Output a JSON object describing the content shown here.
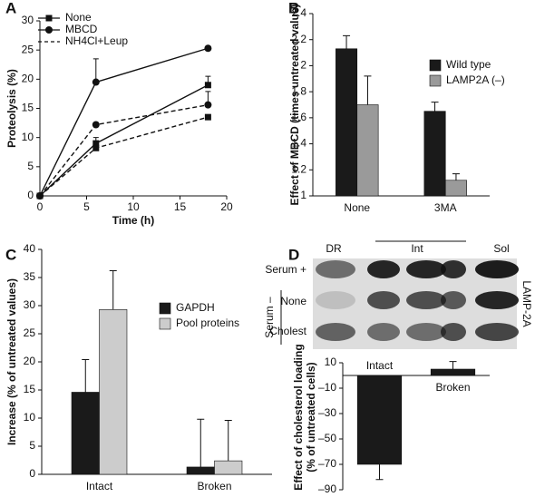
{
  "chart_data": [
    {
      "type": "line",
      "panel": "A",
      "ylabel": "Proteolysis (%)",
      "xlabel": "Time (h)",
      "x": [
        0,
        6,
        18
      ],
      "xlim": [
        0,
        20
      ],
      "xticks": [
        0,
        5,
        10,
        15,
        20
      ],
      "ylim": [
        0,
        30
      ],
      "yticks": [
        0,
        5,
        10,
        15,
        20,
        25,
        30
      ],
      "series": [
        {
          "marker": "square",
          "dash": false,
          "color": "#111111",
          "values": [
            0,
            9,
            19
          ],
          "errors": [
            null,
            1,
            1.5
          ]
        },
        {
          "marker": "circle",
          "dash": false,
          "color": "#111111",
          "values": [
            0,
            19.5,
            25.3
          ],
          "errors": [
            null,
            4,
            null
          ]
        },
        {
          "marker": "square",
          "dash": true,
          "color": "#111111",
          "values": [
            0,
            8.2,
            13.5
          ],
          "errors": [
            null,
            0.8,
            null
          ]
        },
        {
          "marker": "circle",
          "dash": true,
          "color": "#111111",
          "values": [
            0,
            12.2,
            15.6
          ],
          "errors": [
            null,
            null,
            2.3
          ]
        }
      ],
      "legend": [
        {
          "label": "None",
          "marker": "square",
          "dash": false
        },
        {
          "label": "MBCD",
          "marker": "circle",
          "dash": false
        },
        {
          "label": "NH4Cl+Leup",
          "marker": null,
          "dash": true
        }
      ]
    },
    {
      "type": "bar",
      "panel": "B",
      "ylabel": "Effect of MBCD (times untreated value)",
      "categories": [
        "None",
        "3MA"
      ],
      "ylim": [
        1,
        2.4
      ],
      "yticks": [
        1,
        1.2,
        1.4,
        1.6,
        1.8,
        2,
        2.2,
        2.4
      ],
      "series": [
        {
          "name": "Wild type",
          "color": "#1a1a1a",
          "values": [
            2.13,
            1.65
          ],
          "errors": [
            0.1,
            0.07
          ]
        },
        {
          "name": "LAMP2A (–)",
          "color": "#9a9a9a",
          "values": [
            1.7,
            1.12
          ],
          "errors": [
            0.22,
            0.05
          ]
        }
      ]
    },
    {
      "type": "bar",
      "panel": "C",
      "ylabel": "Increase (% of untreated values)",
      "categories": [
        "Intact",
        "Broken"
      ],
      "ylim": [
        0,
        40
      ],
      "yticks": [
        0,
        5,
        10,
        15,
        20,
        25,
        30,
        35,
        40
      ],
      "series": [
        {
          "name": "GAPDH",
          "color": "#1a1a1a",
          "values": [
            14.6,
            1.3
          ],
          "errors": [
            5.8,
            8.5
          ]
        },
        {
          "name": "Pool proteins",
          "color": "#cccccc",
          "values": [
            29.3,
            2.4
          ],
          "errors": [
            6.9,
            7.2
          ]
        }
      ]
    },
    {
      "type": "bar",
      "panel": "D",
      "ylabel": [
        "Effect of cholesterol loading",
        "(% of untreated cells)"
      ],
      "categories": [
        "Intact",
        "Broken"
      ],
      "ylim": [
        -90,
        10
      ],
      "yticks": [
        {
          "value": -90,
          "label": "–90"
        },
        {
          "value": -70,
          "label": "–70"
        },
        {
          "value": -50,
          "label": "–50"
        },
        {
          "value": -30,
          "label": "–30"
        },
        {
          "value": -10,
          "label": "–10"
        },
        10
      ],
      "series": [
        {
          "color": "#1a1a1a",
          "values": [
            -70,
            5
          ],
          "errors": [
            12,
            6
          ]
        }
      ],
      "blot": {
        "lanes": [
          "DR",
          "Int",
          "Sol"
        ],
        "rows": [
          "Serum +",
          "None",
          "Cholest"
        ],
        "group": "Serum –",
        "side": "LAMP-2A"
      }
    }
  ]
}
